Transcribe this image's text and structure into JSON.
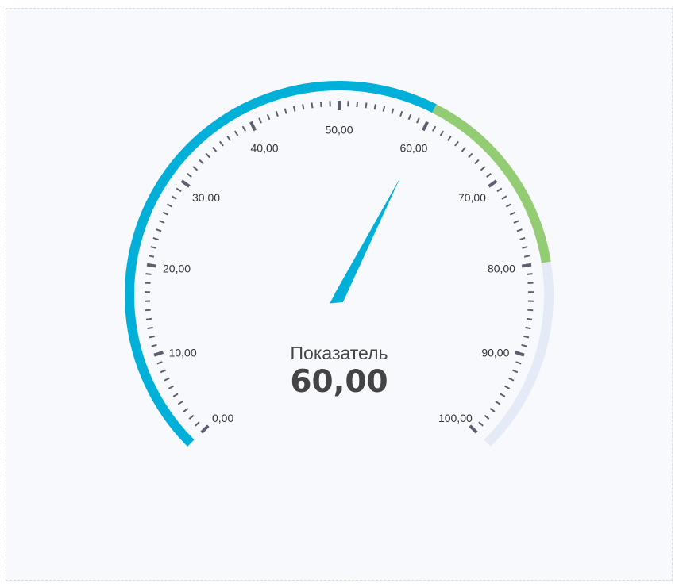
{
  "chart_data": {
    "type": "gauge",
    "title": "Показатель",
    "value": 60,
    "value_label": "60,00",
    "range": [
      0,
      100
    ],
    "major_step": 10,
    "minor_step": 1,
    "tick_labels": [
      "0,00",
      "10,00",
      "20,00",
      "30,00",
      "40,00",
      "50,00",
      "60,00",
      "70,00",
      "80,00",
      "90,00",
      "100,00"
    ],
    "bands": [
      {
        "from": 0,
        "to": 60,
        "color": "#00b0d8"
      },
      {
        "from": 60,
        "to": 80,
        "color": "#93cc72"
      },
      {
        "from": 80,
        "to": 100,
        "color": "#e4ebf6"
      }
    ],
    "needle_color": "#00b0d8",
    "tick_color": "#5c5f6e"
  }
}
